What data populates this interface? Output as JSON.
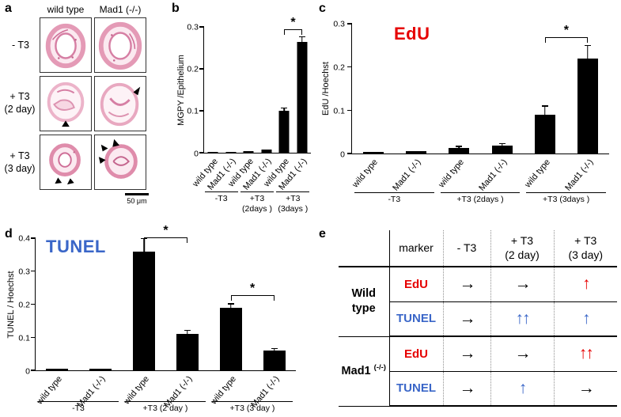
{
  "panels": {
    "a": {
      "label": "a",
      "column_headers": [
        "wild type",
        "Mad1 (-/-)"
      ],
      "row_labels": [
        "- T3",
        "+ T3\n(2 day)",
        "+ T3\n(3 day)"
      ],
      "scale_bar_label": "50 μm"
    },
    "b": {
      "label": "b"
    },
    "c": {
      "label": "c"
    },
    "d": {
      "label": "d"
    },
    "e": {
      "label": "e"
    }
  },
  "colors": {
    "edu_red": "#e60000",
    "tunel_blue": "#3a66c8",
    "bar_black": "#000000"
  },
  "chart_data": [
    {
      "id": "b",
      "type": "bar",
      "title": "",
      "ylabel": "MGPY /Epithelium",
      "xlabel": "",
      "ylim": [
        0,
        0.3
      ],
      "yticks": [
        0,
        0.1,
        0.2,
        0.3
      ],
      "categories": [
        "wild type",
        "Mad1 (-/-)",
        "wild type",
        "Mad1 (-/-)",
        "wild type",
        "Mad1 (-/-)"
      ],
      "groups": [
        "-T3",
        "+T3\n(2days )",
        "+T3\n(3days )"
      ],
      "values": [
        0.002,
        0.002,
        0.004,
        0.008,
        0.1,
        0.265
      ],
      "errors": [
        0.001,
        0.001,
        0.002,
        0.003,
        0.007,
        0.012
      ],
      "significance": [
        {
          "pair": [
            4,
            5
          ],
          "y": 0.281,
          "label": "*"
        }
      ]
    },
    {
      "id": "c",
      "type": "bar",
      "title": "EdU",
      "ylabel": "EdU /Hoechst",
      "xlabel": "",
      "ylim": [
        0,
        0.3
      ],
      "yticks": [
        0,
        0.1,
        0.2,
        0.3
      ],
      "categories": [
        "wild type",
        "Mad1 (-/-)",
        "wild type",
        "Mad1 (-/-)",
        "wild type",
        "Mad1 (-/-)"
      ],
      "groups": [
        "-T3",
        "+T3 (2days )",
        "+T3 (3days )"
      ],
      "values": [
        0.004,
        0.005,
        0.013,
        0.018,
        0.09,
        0.22
      ],
      "errors": [
        0.002,
        0.002,
        0.004,
        0.005,
        0.02,
        0.03
      ],
      "significance": [
        {
          "pair": [
            4,
            5
          ],
          "y": 0.256,
          "label": "*"
        }
      ]
    },
    {
      "id": "d",
      "type": "bar",
      "title": "TUNEL",
      "ylabel": "TUNEL / Hoechst",
      "xlabel": "",
      "ylim": [
        0,
        0.4
      ],
      "yticks": [
        0,
        0.1,
        0.2,
        0.3,
        0.4
      ],
      "categories": [
        "wild type",
        "Mad1 (-/-)",
        "wild type",
        "Mad1 (-/-)",
        "wild type",
        "Mad1 (-/-)"
      ],
      "groups": [
        "-T3",
        "+T3 (2 day )",
        "+T3 (3 day )"
      ],
      "values": [
        0.004,
        0.004,
        0.36,
        0.11,
        0.19,
        0.06
      ],
      "errors": [
        0.002,
        0.002,
        0.04,
        0.012,
        0.012,
        0.006
      ],
      "significance": [
        {
          "pair": [
            2,
            3
          ],
          "y": 0.385,
          "label": "*"
        },
        {
          "pair": [
            4,
            5
          ],
          "y": 0.21,
          "label": "*"
        }
      ]
    },
    {
      "id": "e",
      "type": "table",
      "columns": [
        "marker",
        "- T3",
        "+ T3\n(2 day)",
        "+ T3\n(3 day)"
      ],
      "row_groups": [
        {
          "name": "Wild type",
          "sup": "",
          "rows": [
            {
              "marker": "EdU",
              "marker_color": "red",
              "cells": [
                {
                  "symbol": "→",
                  "color": "black"
                },
                {
                  "symbol": "→",
                  "color": "black"
                },
                {
                  "symbol": "↑",
                  "color": "red"
                }
              ]
            },
            {
              "marker": "TUNEL",
              "marker_color": "blue",
              "cells": [
                {
                  "symbol": "→",
                  "color": "black"
                },
                {
                  "symbol": "↑↑",
                  "color": "blue"
                },
                {
                  "symbol": "↑",
                  "color": "blue"
                }
              ]
            }
          ]
        },
        {
          "name": "Mad1",
          "sup": "(-/-)",
          "rows": [
            {
              "marker": "EdU",
              "marker_color": "red",
              "cells": [
                {
                  "symbol": "→",
                  "color": "black"
                },
                {
                  "symbol": "→",
                  "color": "black"
                },
                {
                  "symbol": "↑↑",
                  "color": "red"
                }
              ]
            },
            {
              "marker": "TUNEL",
              "marker_color": "blue",
              "cells": [
                {
                  "symbol": "→",
                  "color": "black"
                },
                {
                  "symbol": "↑",
                  "color": "blue"
                },
                {
                  "symbol": "→",
                  "color": "black"
                }
              ]
            }
          ]
        }
      ]
    }
  ]
}
